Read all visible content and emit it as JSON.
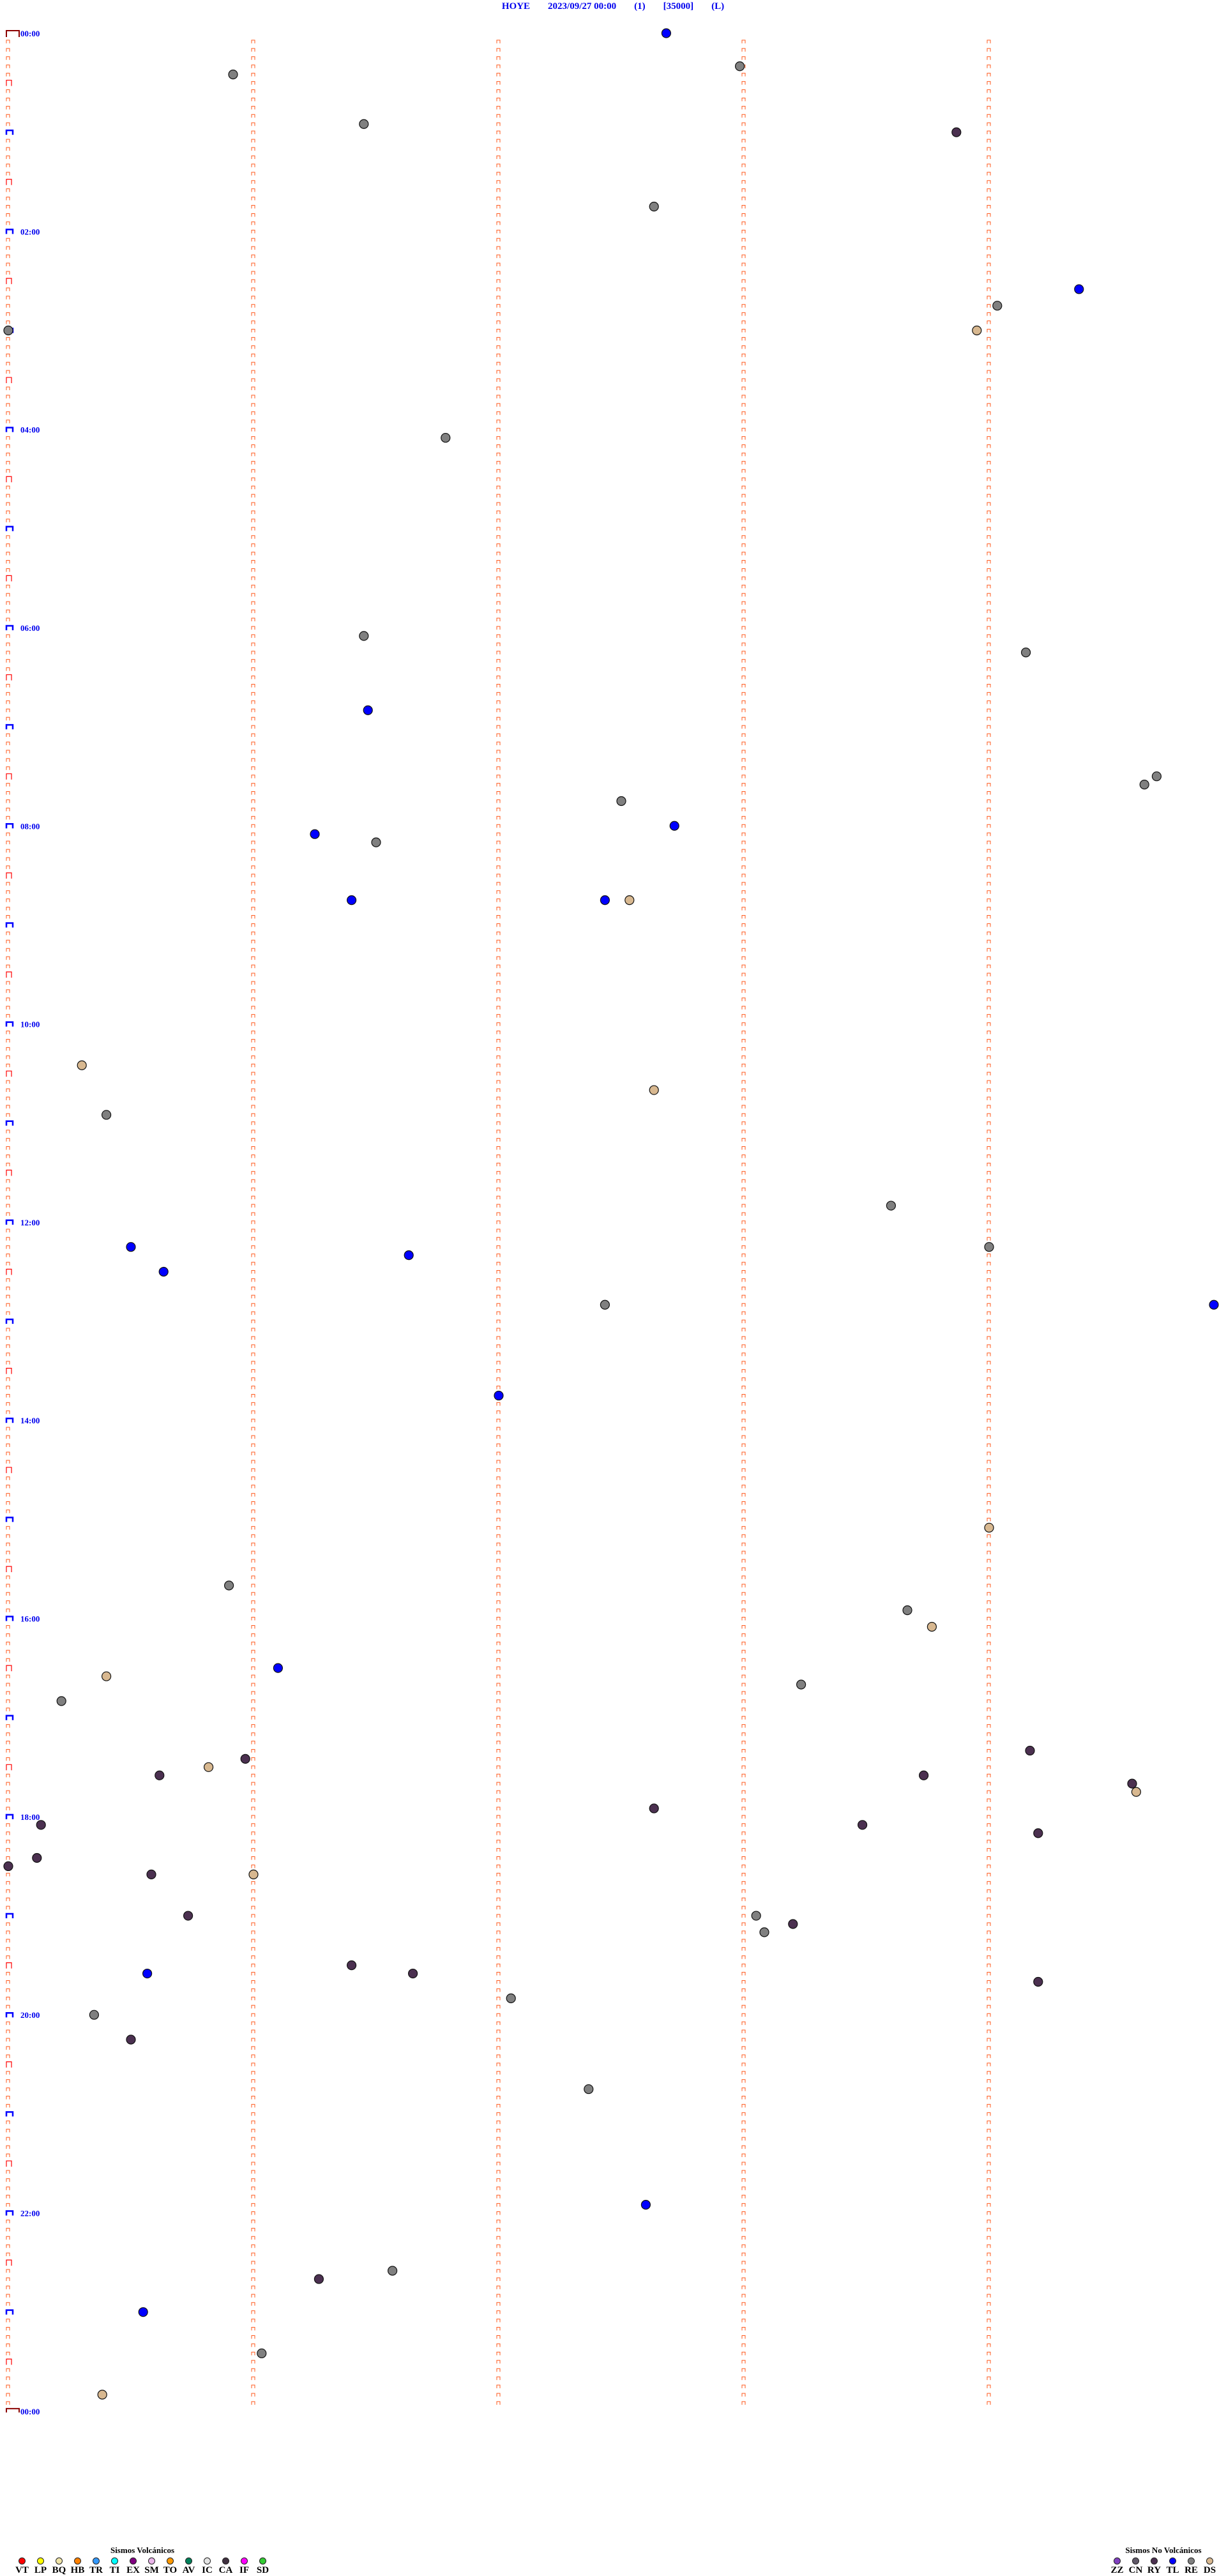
{
  "header": {
    "station": "HOYE",
    "datetime": "2023/09/27 00:00",
    "channel": "(1)",
    "scale": "[35000]",
    "mode": "(L)"
  },
  "chart_data": {
    "type": "scatter",
    "description_axis": "time",
    "row_minutes": 5,
    "hour_labels": [
      "00:00",
      "02:00",
      "04:00",
      "06:00",
      "08:00",
      "10:00",
      "12:00",
      "14:00",
      "16:00",
      "18:00",
      "20:00",
      "22:00",
      "00:00"
    ],
    "colors": {
      "tick": "#ff5a1e",
      "half_hour_tick": "#ff0000",
      "hour_tick": "#0000ff",
      "label": "#0000ee"
    },
    "events": [
      {
        "t": "00:02:41",
        "type": "TL"
      },
      {
        "t": "00:25:55",
        "type": "RE"
      },
      {
        "t": "00:22:59",
        "type": "RE"
      },
      {
        "t": "00:56:27",
        "type": "RE"
      },
      {
        "t": "01:03:52",
        "type": "RY"
      },
      {
        "t": "01:47:38",
        "type": "RE"
      },
      {
        "t": "02:39:22",
        "type": "TL"
      },
      {
        "t": "02:49:02",
        "type": "RE"
      },
      {
        "t": "03:03:57",
        "type": "DS"
      },
      {
        "t": "03:00:00",
        "type": "RE"
      },
      {
        "t": "04:06:47",
        "type": "RE"
      },
      {
        "t": "06:06:27",
        "type": "RE"
      },
      {
        "t": "06:19:09",
        "type": "RE"
      },
      {
        "t": "06:51:28",
        "type": "TL"
      },
      {
        "t": "07:34:41",
        "type": "RE"
      },
      {
        "t": "07:39:38",
        "type": "RE"
      },
      {
        "t": "07:47:30",
        "type": "RE"
      },
      {
        "t": "08:02:43",
        "type": "TL"
      },
      {
        "t": "08:06:15",
        "type": "TL"
      },
      {
        "t": "08:11:30",
        "type": "RE"
      },
      {
        "t": "08:46:24",
        "type": "TL"
      },
      {
        "t": "08:47:26",
        "type": "TL"
      },
      {
        "t": "08:47:32",
        "type": "DS"
      },
      {
        "t": "10:25:18",
        "type": "DS"
      },
      {
        "t": "10:42:38",
        "type": "DS"
      },
      {
        "t": "10:55:24",
        "type": "RE"
      },
      {
        "t": "11:53:36",
        "type": "RE"
      },
      {
        "t": "12:15:30",
        "type": "TL"
      },
      {
        "t": "12:19:00",
        "type": "RE"
      },
      {
        "t": "12:21:38",
        "type": "TL"
      },
      {
        "t": "12:30:38",
        "type": "TL"
      },
      {
        "t": "12:52:26",
        "type": "RE"
      },
      {
        "t": "12:54:55",
        "type": "TL"
      },
      {
        "t": "13:47:00",
        "type": "TL"
      },
      {
        "t": "15:09:00",
        "type": "DS"
      },
      {
        "t": "15:40:54",
        "type": "RE"
      },
      {
        "t": "15:58:40",
        "type": "RE"
      },
      {
        "t": "16:08:46",
        "type": "DS"
      },
      {
        "t": "16:31:06",
        "type": "TL"
      },
      {
        "t": "16:35:24",
        "type": "DS"
      },
      {
        "t": "16:43:14",
        "type": "RE"
      },
      {
        "t": "16:50:13",
        "type": "RE"
      },
      {
        "t": "17:24:10",
        "type": "RY"
      },
      {
        "t": "17:25:58",
        "type": "RY"
      },
      {
        "t": "17:30:49",
        "type": "DS"
      },
      {
        "t": "17:35:37",
        "type": "RY"
      },
      {
        "t": "17:38:44",
        "type": "RY"
      },
      {
        "t": "17:44:35",
        "type": "RY"
      },
      {
        "t": "17:49:36",
        "type": "DS"
      },
      {
        "t": "17:57:38",
        "type": "RY"
      },
      {
        "t": "18:05:08",
        "type": "RY"
      },
      {
        "t": "18:08:29",
        "type": "RY"
      },
      {
        "t": "18:14:12",
        "type": "RY"
      },
      {
        "t": "18:25:07",
        "type": "RY"
      },
      {
        "t": "18:30:00",
        "type": "RY"
      },
      {
        "t": "18:35:35",
        "type": "RY"
      },
      {
        "t": "18:36:00",
        "type": "DS"
      },
      {
        "t": "19:00:44",
        "type": "RY"
      },
      {
        "t": "19:03:03",
        "type": "RE"
      },
      {
        "t": "19:08:12",
        "type": "RY"
      },
      {
        "t": "19:13:05",
        "type": "RE"
      },
      {
        "t": "19:31:24",
        "type": "RY"
      },
      {
        "t": "19:36:39",
        "type": "RY"
      },
      {
        "t": "19:35:34",
        "type": "TL"
      },
      {
        "t": "19:44:12",
        "type": "RY"
      },
      {
        "t": "19:52:03",
        "type": "RE"
      },
      {
        "t": "20:00:21",
        "type": "RE"
      },
      {
        "t": "20:15:30",
        "type": "RY"
      },
      {
        "t": "20:47:22",
        "type": "RE"
      },
      {
        "t": "21:57:36",
        "type": "TL"
      },
      {
        "t": "22:36:34",
        "type": "RE"
      },
      {
        "t": "22:41:16",
        "type": "RY"
      },
      {
        "t": "23:00:33",
        "type": "TL"
      },
      {
        "t": "23:26:02",
        "type": "RE"
      },
      {
        "t": "23:50:23",
        "type": "DS"
      }
    ]
  },
  "legend_volcanic": {
    "title": "Sismos Volcánicos",
    "items": [
      {
        "code": "VT",
        "color": "#ff0000"
      },
      {
        "code": "LP",
        "color": "#ffff00"
      },
      {
        "code": "BQ",
        "color": "#f0e4a8"
      },
      {
        "code": "HB",
        "color": "#ff8000"
      },
      {
        "code": "TR",
        "color": "#3399ff"
      },
      {
        "code": "TI",
        "color": "#00ffff"
      },
      {
        "code": "EX",
        "color": "#800080"
      },
      {
        "code": "SM",
        "color": "#e8b4e8"
      },
      {
        "code": "TO",
        "color": "#ff9900"
      },
      {
        "code": "AV",
        "color": "#00805a"
      },
      {
        "code": "IC",
        "color": "#e4e4e4"
      },
      {
        "code": "CA",
        "color": "#403040"
      },
      {
        "code": "IF",
        "color": "#ff00ff"
      },
      {
        "code": "SD",
        "color": "#33cc33"
      }
    ]
  },
  "legend_nonvolcanic": {
    "title": "Sismos No Volcánicos",
    "items": [
      {
        "code": "ZZ",
        "color": "#8040c0"
      },
      {
        "code": "CN",
        "color": "#605868"
      },
      {
        "code": "RY",
        "color": "#4b3050"
      },
      {
        "code": "TL",
        "color": "#0000ff"
      },
      {
        "code": "RE",
        "color": "#808080"
      },
      {
        "code": "DS",
        "color": "#d8b890"
      }
    ]
  }
}
